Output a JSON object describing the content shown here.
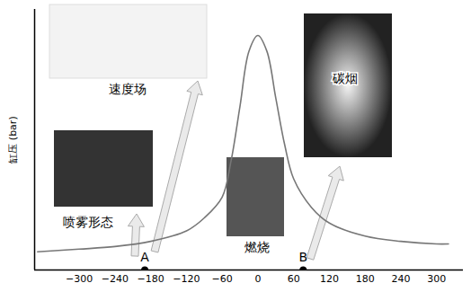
{
  "chart_data": {
    "type": "line",
    "ylabel": "缸压 (bar)",
    "x": [
      -370,
      -300,
      -240,
      -180,
      -120,
      -90,
      -60,
      -45,
      -30,
      -15,
      0,
      15,
      30,
      45,
      60,
      90,
      120,
      180,
      240,
      300,
      320
    ],
    "values": [
      7,
      8,
      9,
      11,
      15,
      20,
      28,
      42,
      63,
      84,
      90,
      84,
      66,
      48,
      35,
      24,
      18,
      13,
      11,
      10,
      10
    ],
    "color": "#777777",
    "xlim": [
      -375,
      345
    ],
    "xticks": [
      -300,
      -240,
      -180,
      -120,
      -60,
      0,
      60,
      120,
      180,
      240,
      300
    ],
    "ylim": [
      0,
      100
    ],
    "tick_labels": "x",
    "points": [
      {
        "label": "A",
        "x": -190,
        "y": 0
      },
      {
        "label": "B",
        "x": 76,
        "y": 0
      }
    ],
    "annotations": [
      {
        "text": "速度场"
      },
      {
        "text": "喷雾形态"
      },
      {
        "text": "燃烧"
      },
      {
        "text": "碳烟"
      }
    ]
  }
}
